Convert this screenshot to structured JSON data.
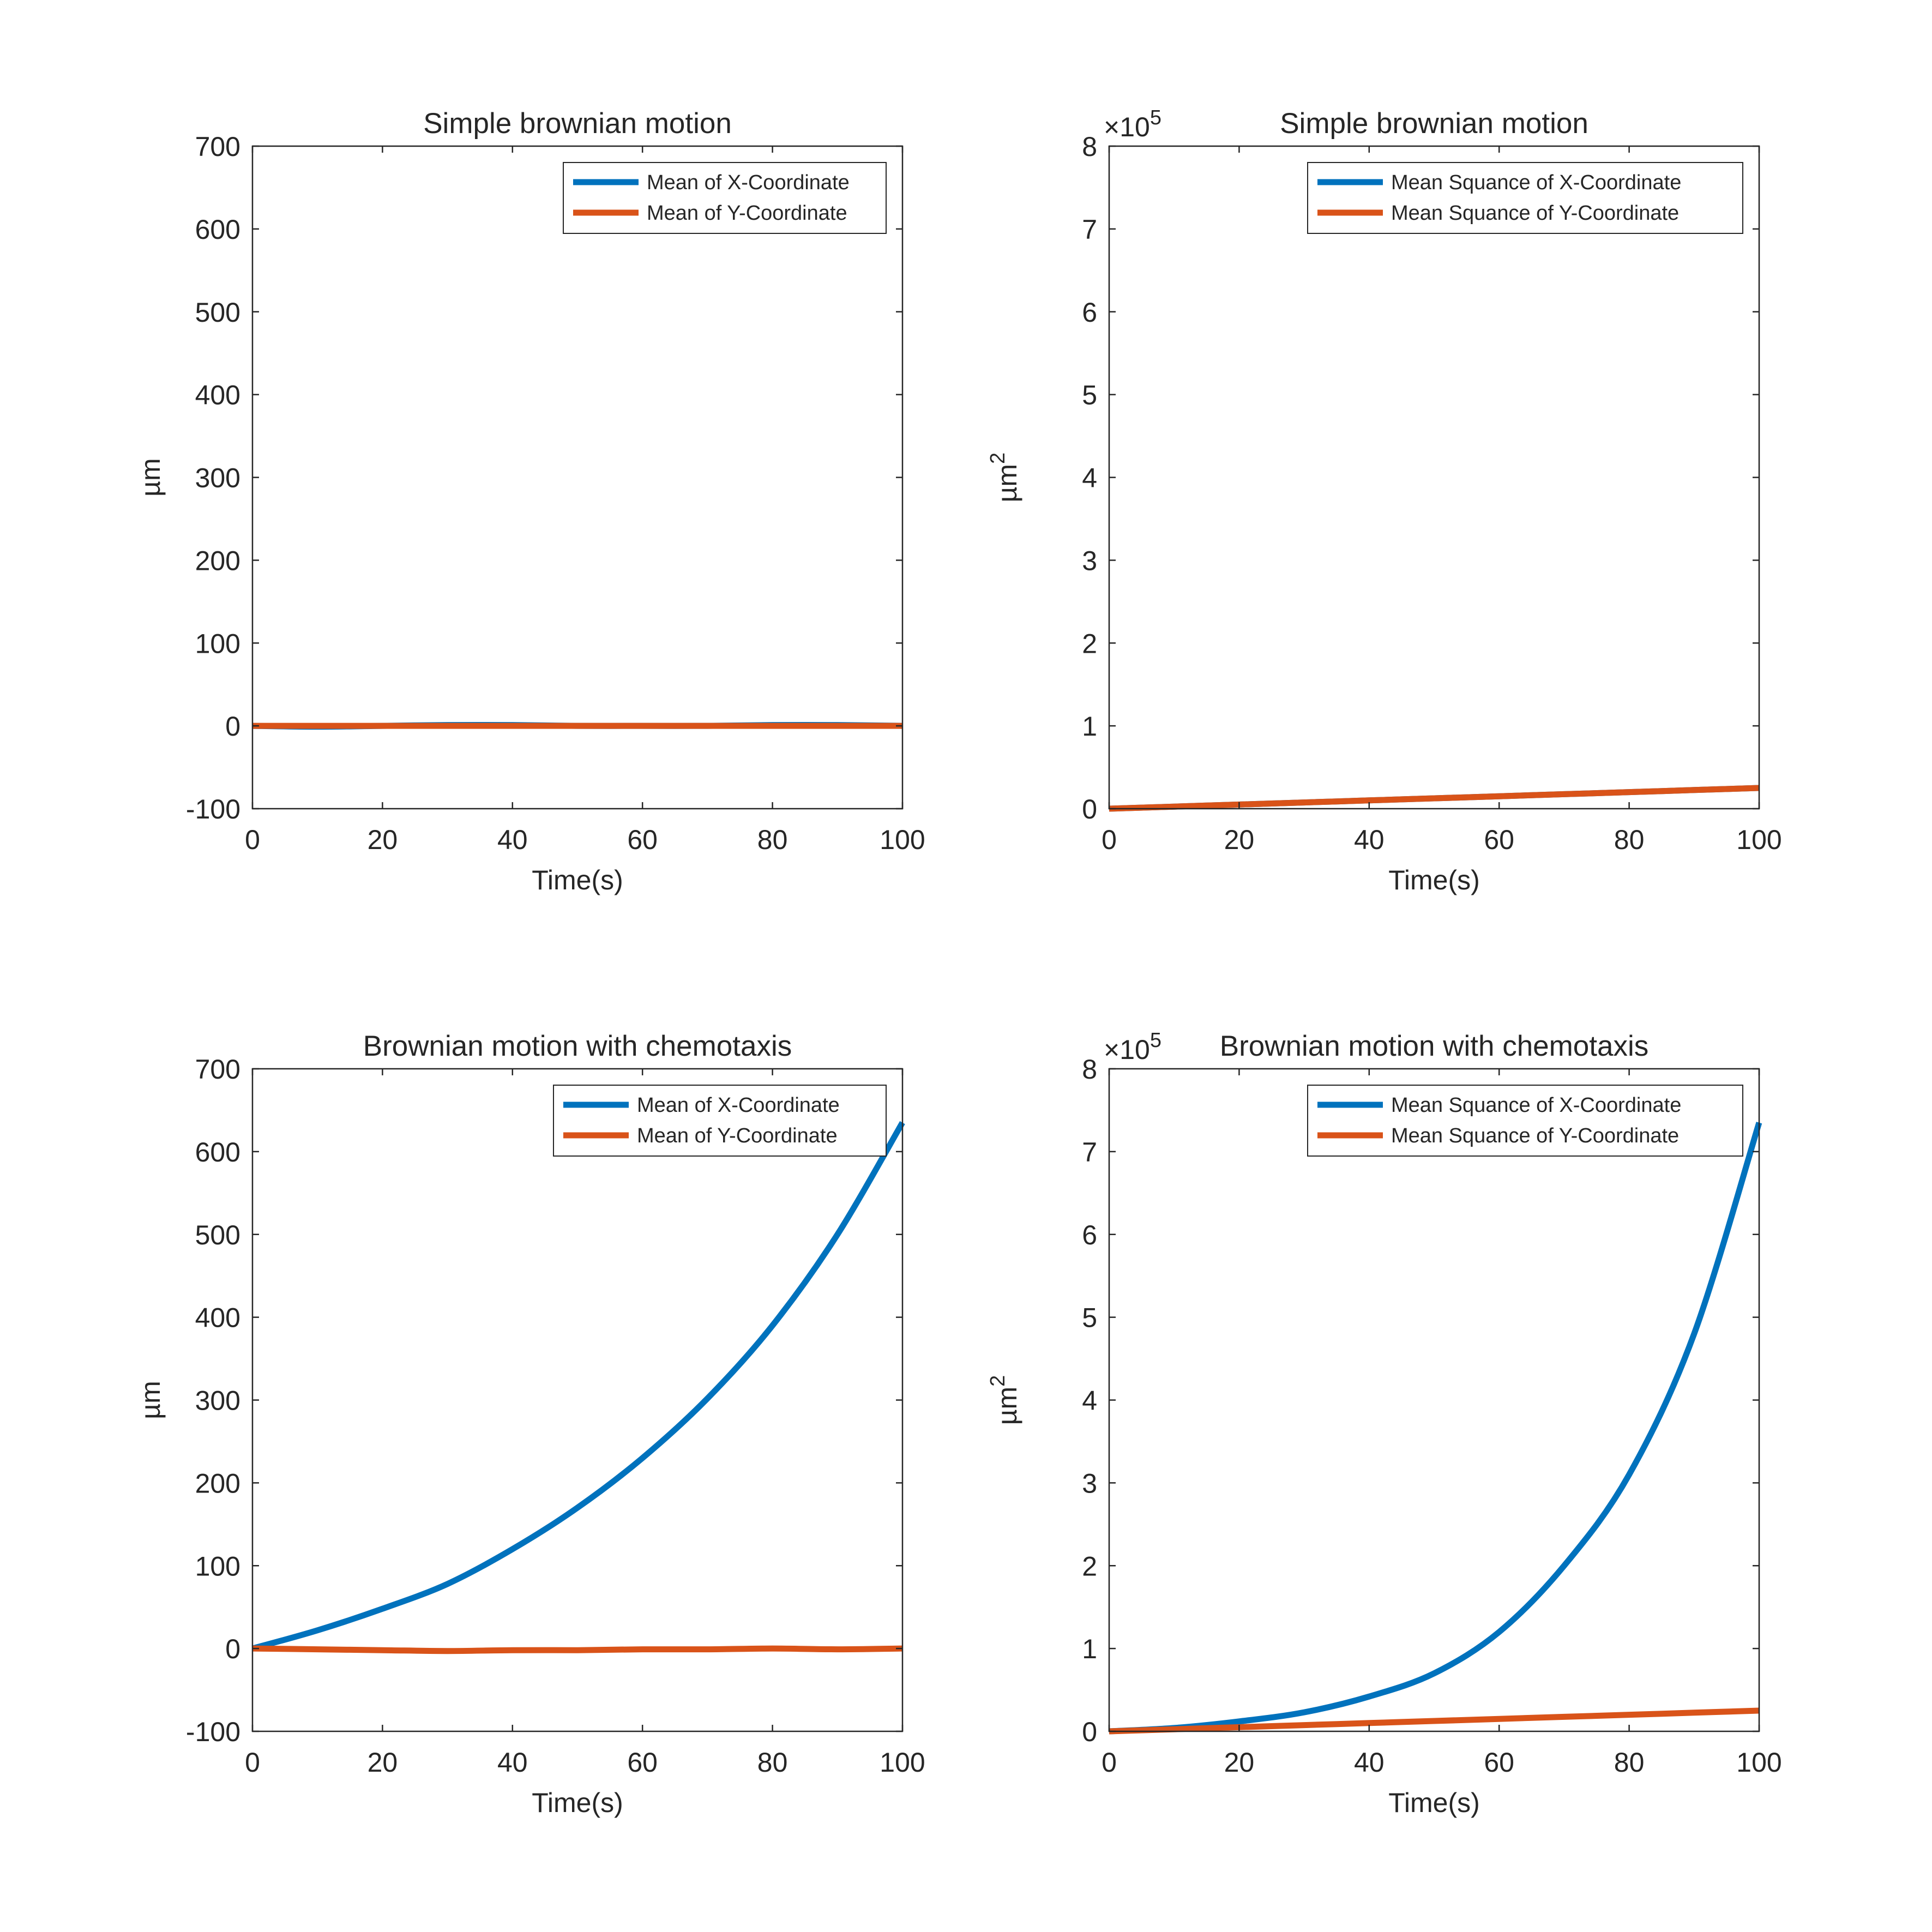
{
  "chart_data": [
    {
      "type": "line",
      "title": "Simple brownian motion",
      "xlabel": "Time(s)",
      "ylabel": "µm",
      "ylabel_sup": "",
      "xlim": [
        0,
        100
      ],
      "ylim": [
        -100,
        700
      ],
      "xticks": [
        0,
        20,
        40,
        60,
        80,
        100
      ],
      "yticks": [
        -100,
        0,
        100,
        200,
        300,
        400,
        500,
        600,
        700
      ],
      "ytick_labels": [
        "-100",
        "0",
        "100",
        "200",
        "300",
        "400",
        "500",
        "600",
        "700"
      ],
      "exponent_label": "",
      "exponent_sup": "",
      "grid": false,
      "legend_position": "top-right",
      "x": [
        0,
        10,
        20,
        30,
        40,
        50,
        60,
        70,
        80,
        90,
        100
      ],
      "series": [
        {
          "name": "Mean of X-Coordinate",
          "color": "#0072BD",
          "values": [
            0,
            -1,
            0,
            1,
            1,
            0,
            0,
            0,
            1,
            1,
            0
          ]
        },
        {
          "name": "Mean of Y-Coordinate",
          "color": "#D95319",
          "values": [
            0,
            0,
            0,
            0,
            0,
            0,
            0,
            0,
            0,
            0,
            0
          ]
        }
      ]
    },
    {
      "type": "line",
      "title": "Simple brownian motion",
      "xlabel": "Time(s)",
      "ylabel": "µm",
      "ylabel_sup": "2",
      "xlim": [
        0,
        100
      ],
      "ylim": [
        0,
        800000
      ],
      "xticks": [
        0,
        20,
        40,
        60,
        80,
        100
      ],
      "yticks": [
        0,
        100000,
        200000,
        300000,
        400000,
        500000,
        600000,
        700000,
        800000
      ],
      "ytick_labels": [
        "0",
        "1",
        "2",
        "3",
        "4",
        "5",
        "6",
        "7",
        "8"
      ],
      "exponent_label": "×10",
      "exponent_sup": "5",
      "grid": false,
      "legend_position": "top-right",
      "x": [
        0,
        10,
        20,
        30,
        40,
        50,
        60,
        70,
        80,
        90,
        100
      ],
      "series": [
        {
          "name": "Mean Squance of X-Coordinate",
          "color": "#0072BD",
          "values": [
            0,
            2500,
            5000,
            7500,
            10000,
            12500,
            15000,
            17500,
            20000,
            22500,
            25000
          ]
        },
        {
          "name": "Mean Squance of Y-Coordinate",
          "color": "#D95319",
          "values": [
            0,
            2500,
            5000,
            7500,
            10000,
            12500,
            15000,
            17500,
            20000,
            22500,
            25000
          ]
        }
      ]
    },
    {
      "type": "line",
      "title": "Brownian motion with chemotaxis",
      "xlabel": "Time(s)",
      "ylabel": "µm",
      "ylabel_sup": "",
      "xlim": [
        0,
        100
      ],
      "ylim": [
        -100,
        700
      ],
      "xticks": [
        0,
        20,
        40,
        60,
        80,
        100
      ],
      "yticks": [
        -100,
        0,
        100,
        200,
        300,
        400,
        500,
        600,
        700
      ],
      "ytick_labels": [
        "-100",
        "0",
        "100",
        "200",
        "300",
        "400",
        "500",
        "600",
        "700"
      ],
      "exponent_label": "",
      "exponent_sup": "",
      "grid": false,
      "legend_position": "top-right",
      "x": [
        0,
        10,
        20,
        30,
        40,
        50,
        60,
        70,
        80,
        90,
        100
      ],
      "series": [
        {
          "name": "Mean of X-Coordinate",
          "color": "#0072BD",
          "values": [
            0,
            22,
            48,
            78,
            120,
            170,
            230,
            302,
            390,
            500,
            635
          ]
        },
        {
          "name": "Mean of Y-Coordinate",
          "color": "#D95319",
          "values": [
            0,
            -1,
            -2,
            -3,
            -2,
            -2,
            -1,
            -1,
            0,
            -1,
            0
          ]
        }
      ]
    },
    {
      "type": "line",
      "title": "Brownian motion with chemotaxis",
      "xlabel": "Time(s)",
      "ylabel": "µm",
      "ylabel_sup": "2",
      "xlim": [
        0,
        100
      ],
      "ylim": [
        0,
        800000
      ],
      "xticks": [
        0,
        20,
        40,
        60,
        80,
        100
      ],
      "yticks": [
        0,
        100000,
        200000,
        300000,
        400000,
        500000,
        600000,
        700000,
        800000
      ],
      "ytick_labels": [
        "0",
        "1",
        "2",
        "3",
        "4",
        "5",
        "6",
        "7",
        "8"
      ],
      "exponent_label": "×10",
      "exponent_sup": "5",
      "grid": false,
      "legend_position": "top-right",
      "x": [
        0,
        10,
        20,
        30,
        40,
        50,
        60,
        70,
        80,
        90,
        100
      ],
      "series": [
        {
          "name": "Mean Squance of X-Coordinate",
          "color": "#0072BD",
          "values": [
            0,
            4000,
            12000,
            23000,
            42000,
            70000,
            120000,
            200000,
            310000,
            480000,
            735000
          ]
        },
        {
          "name": "Mean Squance of Y-Coordinate",
          "color": "#D95319",
          "values": [
            0,
            2500,
            5000,
            7500,
            10000,
            12500,
            15000,
            17500,
            20000,
            22500,
            25000
          ]
        }
      ]
    }
  ]
}
